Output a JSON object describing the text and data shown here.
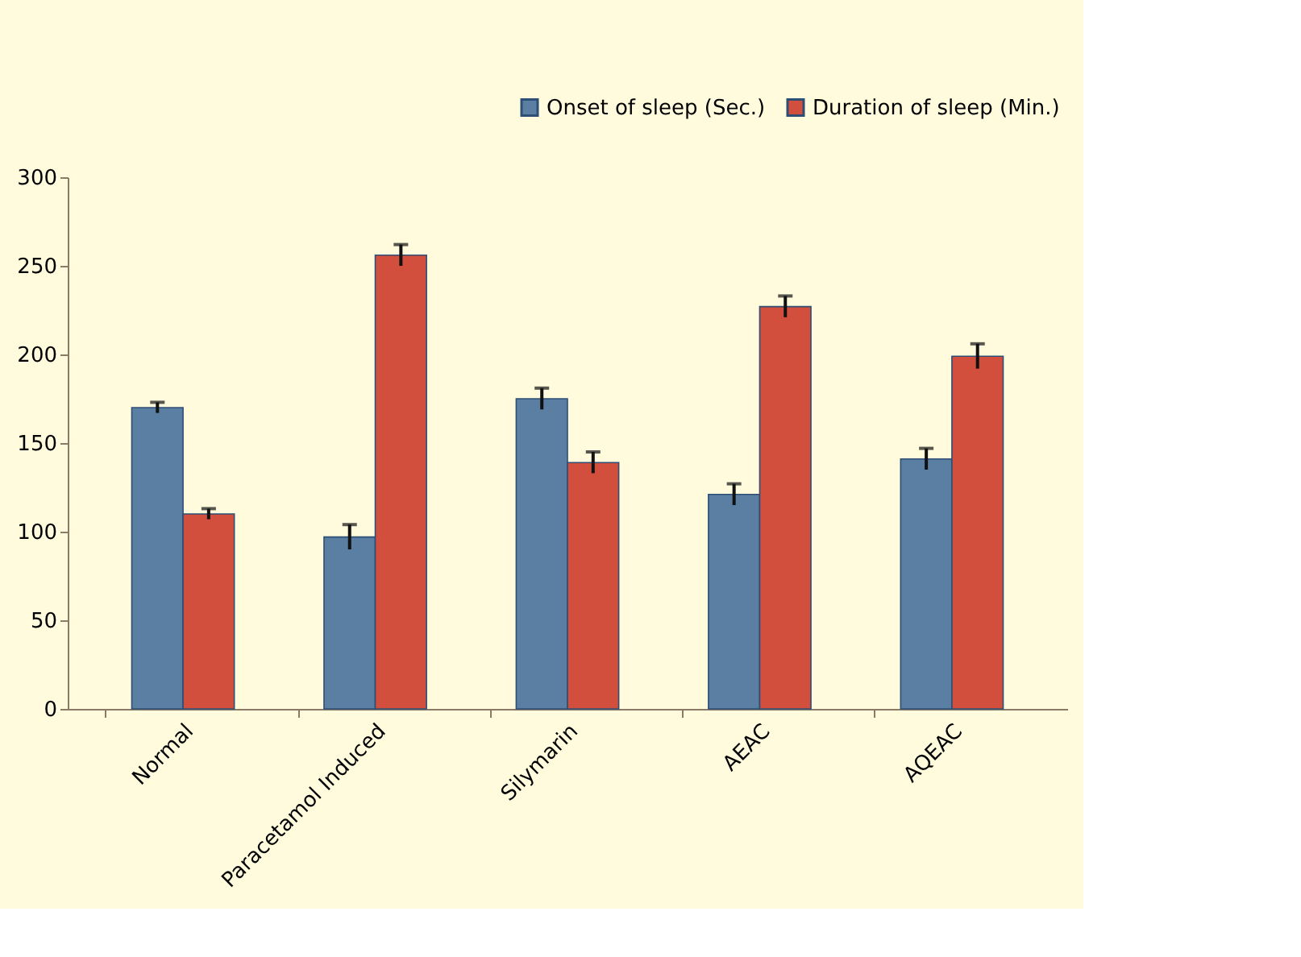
{
  "chart_data": {
    "type": "bar",
    "categories": [
      "Normal",
      "Paracetamol Induced",
      "Silymarin",
      "AEAC",
      "AQEAC"
    ],
    "series": [
      {
        "name": "Onset of sleep (Sec.)",
        "color": "#5b7fa3",
        "values": [
          170,
          97,
          175,
          121,
          141
        ],
        "errors": [
          3,
          7,
          6,
          6,
          6
        ]
      },
      {
        "name": "Duration of sleep (Min.)",
        "color": "#d24f3e",
        "values": [
          110,
          256,
          139,
          227,
          199
        ],
        "errors": [
          3,
          6,
          6,
          6,
          7
        ]
      }
    ],
    "ylim": [
      0,
      300
    ],
    "yticks": [
      0,
      50,
      100,
      150,
      200,
      250,
      300
    ],
    "grid": false,
    "legend": "top right"
  }
}
